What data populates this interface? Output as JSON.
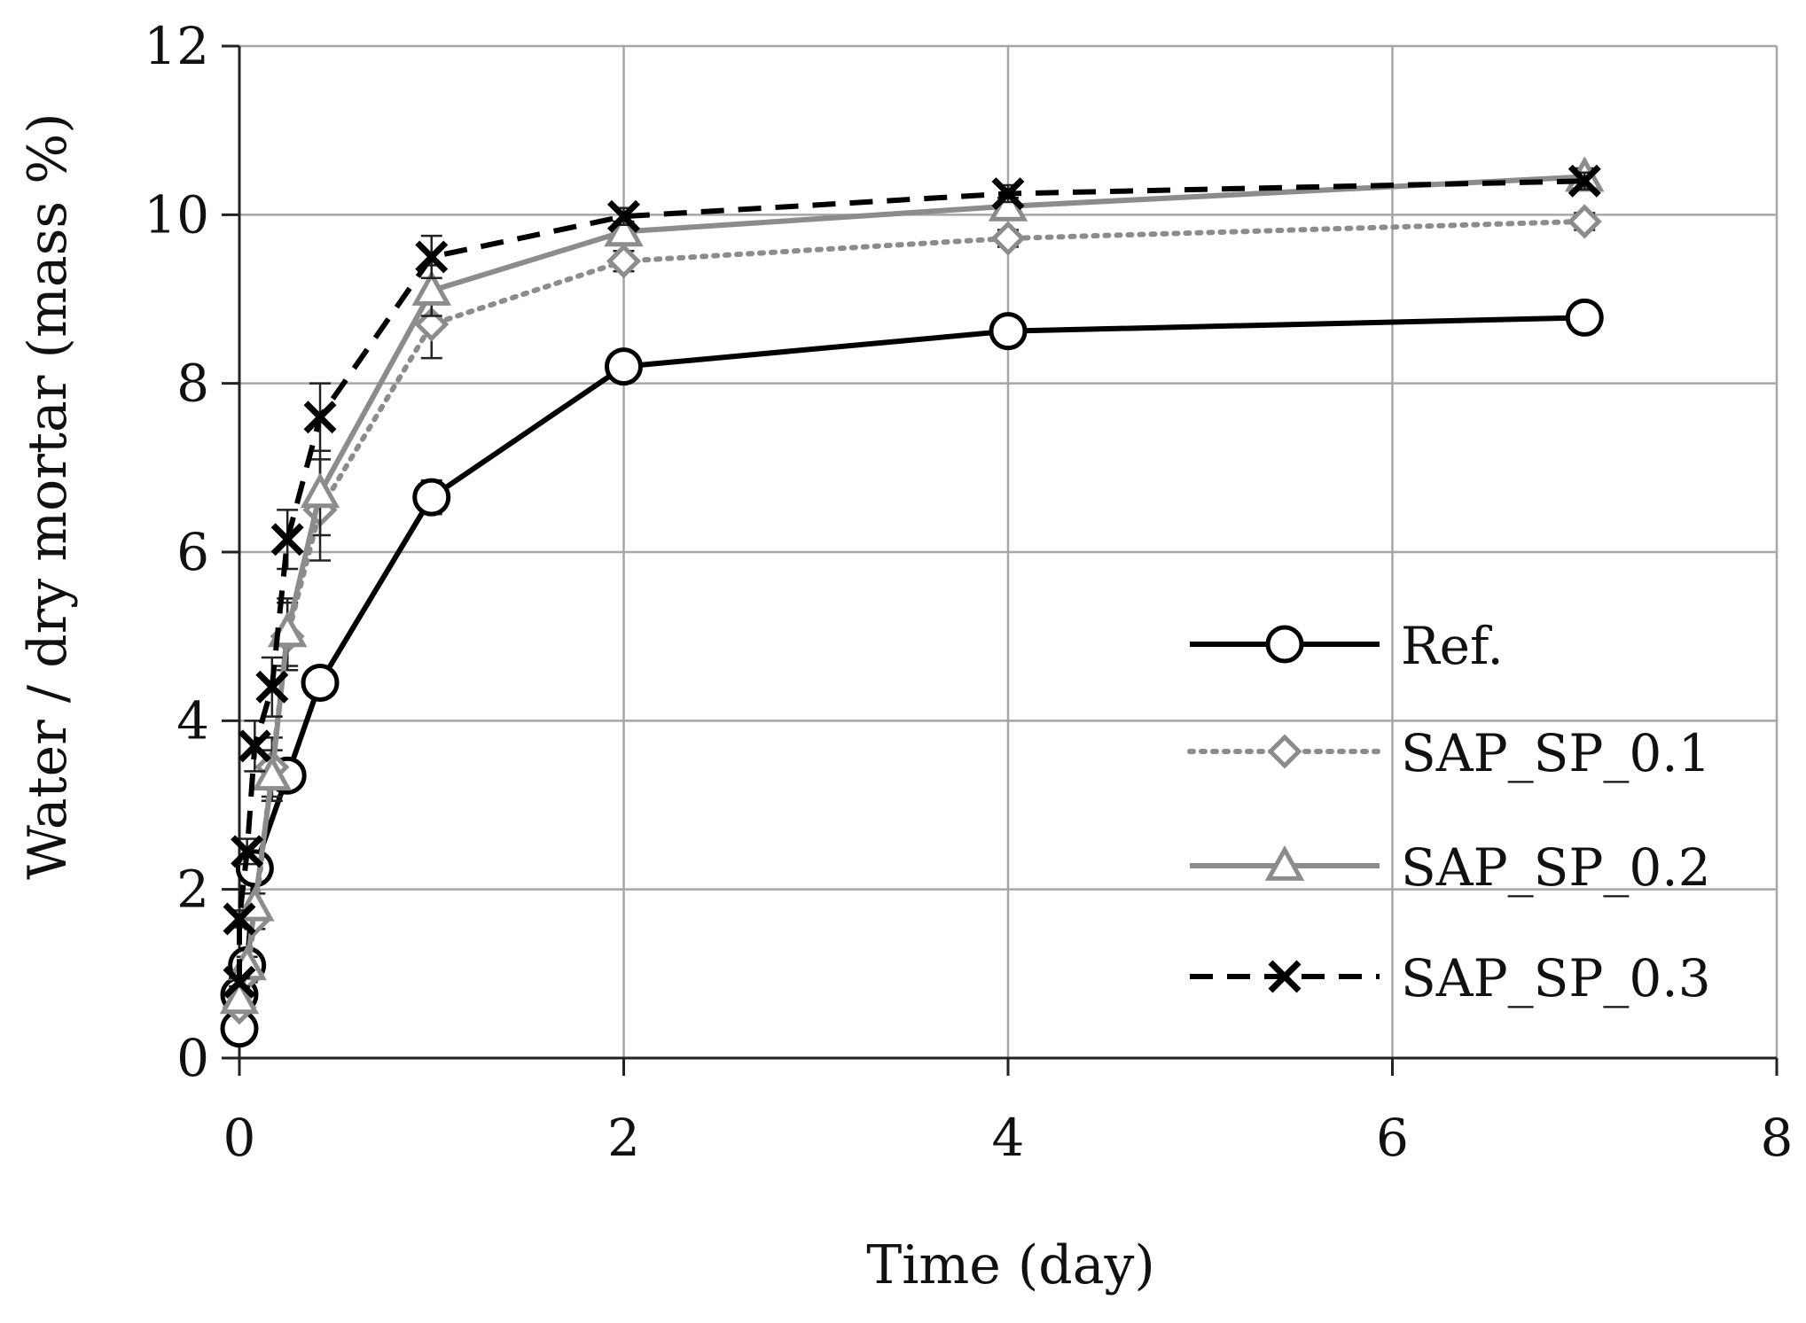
{
  "chart_data": {
    "type": "line",
    "title": "",
    "xlabel": "Time (day)",
    "ylabel": "Water / dry mortar (mass %)",
    "xlim": [
      0,
      8
    ],
    "ylim": [
      0,
      12
    ],
    "xticks": [
      "0",
      "2",
      "4",
      "6",
      "8"
    ],
    "yticks": [
      "0",
      "2",
      "4",
      "6",
      "8",
      "10",
      "12"
    ],
    "grid": true,
    "legend_position": "right-middle",
    "series": [
      {
        "name": "Ref.",
        "color": "#000000",
        "line_style": "solid",
        "marker": "circle",
        "x": [
          0.0,
          0.0,
          0.04,
          0.08,
          0.25,
          0.42,
          1.0,
          2.0,
          4.0,
          7.0
        ],
        "y": [
          0.35,
          0.75,
          1.1,
          2.25,
          3.35,
          4.45,
          6.65,
          8.2,
          8.62,
          8.78
        ],
        "errors": [
          0.05,
          0.05,
          0.05,
          0.08,
          0.1,
          0.12,
          0.2,
          0.08,
          0.08,
          0.08
        ]
      },
      {
        "name": "SAP_SP_0.1",
        "color": "#8c8c8c",
        "line_style": "dotted",
        "marker": "diamond",
        "x": [
          0.0,
          0.04,
          0.08,
          0.17,
          0.25,
          0.42,
          1.0,
          2.0,
          4.0,
          7.0
        ],
        "y": [
          0.6,
          1.0,
          1.65,
          3.45,
          5.0,
          6.5,
          8.7,
          9.45,
          9.72,
          9.92
        ],
        "errors": [
          0.05,
          0.1,
          0.12,
          0.35,
          0.4,
          0.6,
          0.4,
          0.12,
          0.1,
          0.1
        ]
      },
      {
        "name": "SAP_SP_0.2",
        "color": "#8c8c8c",
        "line_style": "solid",
        "marker": "triangle",
        "x": [
          0.0,
          0.04,
          0.08,
          0.17,
          0.25,
          0.42,
          1.0,
          2.0,
          4.0,
          7.0
        ],
        "y": [
          0.7,
          1.1,
          1.8,
          3.35,
          5.05,
          6.7,
          9.1,
          9.8,
          10.1,
          10.45
        ],
        "errors": [
          0.05,
          0.1,
          0.15,
          0.3,
          0.4,
          0.5,
          0.3,
          0.12,
          0.1,
          0.1
        ]
      },
      {
        "name": "SAP_SP_0.3",
        "color": "#000000",
        "line_style": "dashed",
        "marker": "x",
        "x": [
          0.0,
          0.0,
          0.04,
          0.08,
          0.17,
          0.25,
          0.42,
          1.0,
          2.0,
          4.0,
          7.0
        ],
        "y": [
          0.9,
          1.65,
          2.45,
          3.7,
          4.4,
          6.15,
          7.6,
          9.5,
          9.98,
          10.25,
          10.4
        ],
        "errors": [
          0.05,
          0.1,
          0.15,
          0.3,
          0.35,
          0.35,
          0.4,
          0.25,
          0.1,
          0.1,
          0.1
        ]
      }
    ]
  }
}
